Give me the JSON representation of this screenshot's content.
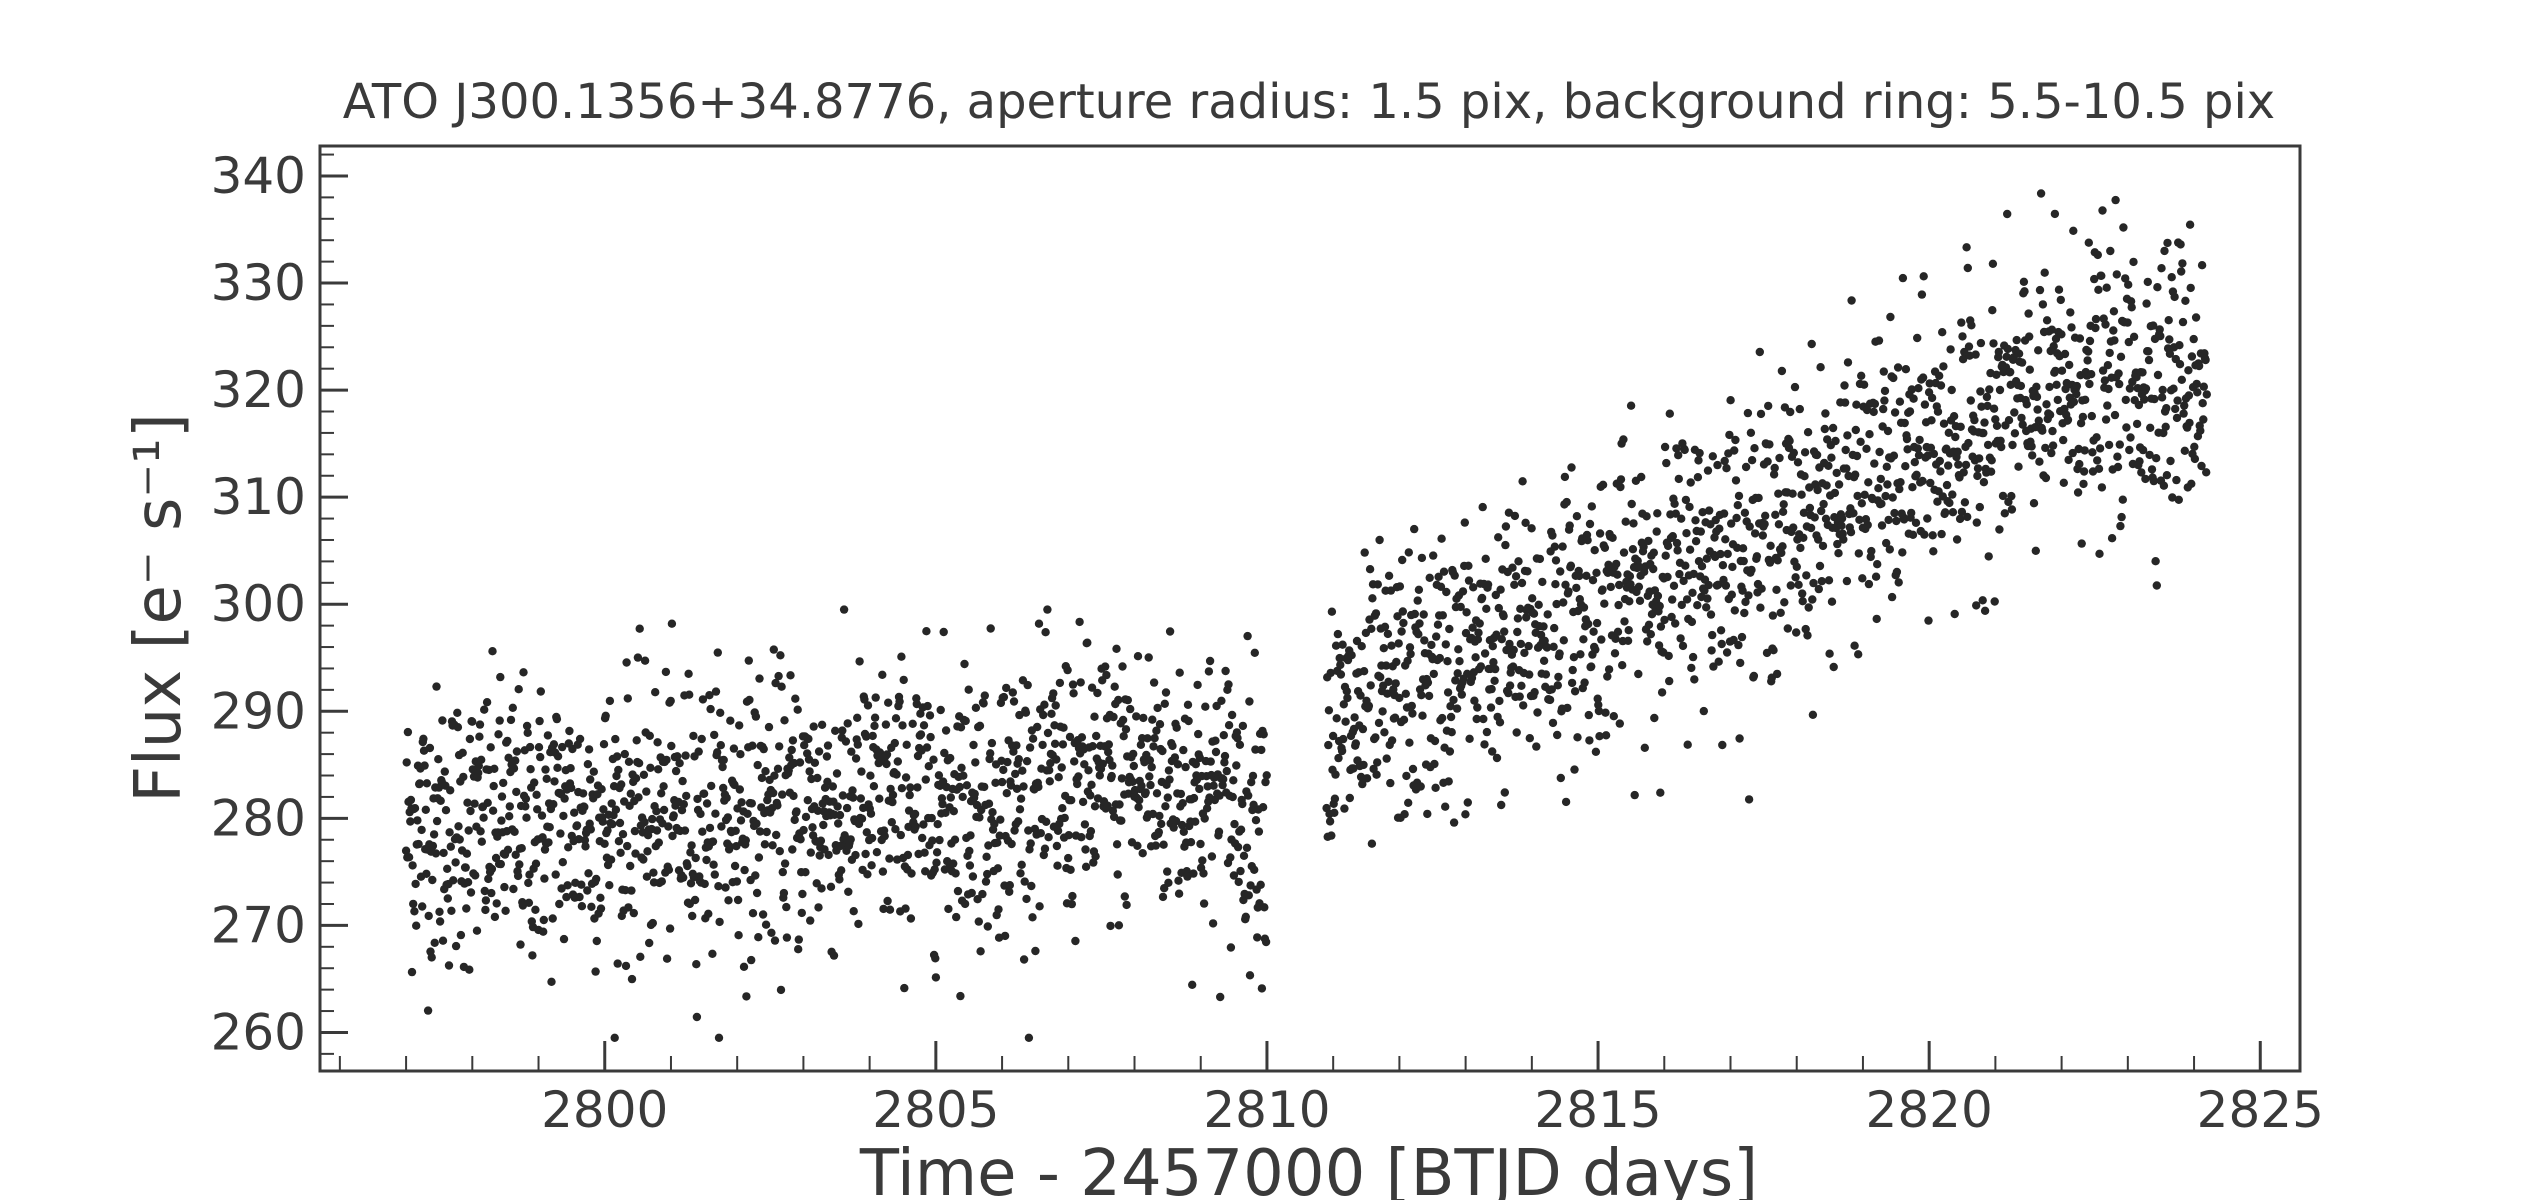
{
  "chart_data": {
    "type": "scatter",
    "title": "ATO J300.1356+34.8776, aperture radius: 1.5 pix, background ring: 5.5-10.5 pix",
    "xlabel": "Time - 2457000 [BTJD days]",
    "ylabel": "Flux [e⁻ s⁻¹]",
    "xlim": [
      2795.7,
      2825.6
    ],
    "ylim": [
      256.4,
      342.8
    ],
    "x_ticks": [
      2800,
      2805,
      2810,
      2815,
      2820,
      2825
    ],
    "x_tick_labels": [
      "2800",
      "2805",
      "2810",
      "2815",
      "2820",
      "2825"
    ],
    "y_ticks": [
      260,
      270,
      280,
      290,
      300,
      310,
      320,
      330,
      340
    ],
    "y_tick_labels": [
      "260",
      "270",
      "280",
      "290",
      "300",
      "310",
      "320",
      "330",
      "340"
    ],
    "grid": false,
    "legend": "none",
    "point_color": "#262626",
    "segments": [
      {
        "x_range": [
          2797.0,
          2810.0
        ],
        "trend": [
          [
            2797.0,
            279
          ],
          [
            2800.5,
            280
          ],
          [
            2804.0,
            281
          ],
          [
            2807.0,
            283
          ],
          [
            2808.3,
            284
          ],
          [
            2810.0,
            281
          ]
        ],
        "spread": 6.5,
        "extremes": {
          "min": 259.5,
          "max": 299.5
        }
      },
      {
        "x_range": [
          2810.9,
          2824.2
        ],
        "trend": [
          [
            2810.9,
            287
          ],
          [
            2812.0,
            292
          ],
          [
            2814.0,
            297
          ],
          [
            2816.0,
            303
          ],
          [
            2818.0,
            308
          ],
          [
            2820.0,
            314
          ],
          [
            2822.0,
            320
          ],
          [
            2824.2,
            322
          ]
        ],
        "spread": 6.5,
        "extremes": {
          "min": 273.8,
          "max": 339.0
        }
      }
    ]
  }
}
